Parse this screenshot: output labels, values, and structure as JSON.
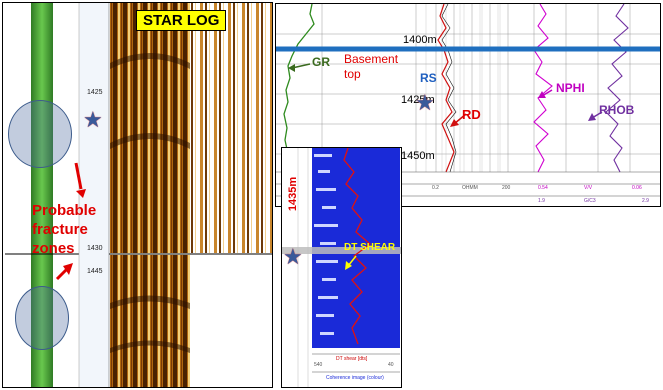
{
  "star_log": {
    "title": "STAR LOG",
    "depths": [
      "1425",
      "1430",
      "1445"
    ]
  },
  "fractures": {
    "label": "Probable fracture zones"
  },
  "logs": {
    "curves": {
      "gr": "GR",
      "rs": "RS",
      "rd": "RD",
      "nphi": "NPHI",
      "rhob": "RHOB"
    },
    "basement_label": "Basement top",
    "depth_markers": [
      "1400m",
      "1425m",
      "1450m"
    ],
    "scales": {
      "rd_low": "0.2",
      "rd_mid": "OHMM",
      "rd_high": "200",
      "nphi_low": "0.54",
      "nphi_mid": "V/V",
      "nphi_high": "0.06",
      "rhob_low": "1.9",
      "rhob_mid": "G/C3",
      "rhob_high": "2.9"
    }
  },
  "sonic": {
    "depth_label": "1435m",
    "shear_label": "DT SHEAR",
    "curve_label": "DT shear [dts]",
    "image_label": "Coherence image (colour)",
    "scale_low": "540",
    "scale_high": "40"
  },
  "colors": {
    "gr": "#3a6a1e",
    "rd": "#d01010",
    "nphi": "#c000c0",
    "rhob": "#7030a0",
    "rs": "#1f5fbf",
    "basement_line": "#1f6fbf",
    "sonic_bg": "#1a2ad8",
    "star_title_bg": "#ffff00"
  }
}
